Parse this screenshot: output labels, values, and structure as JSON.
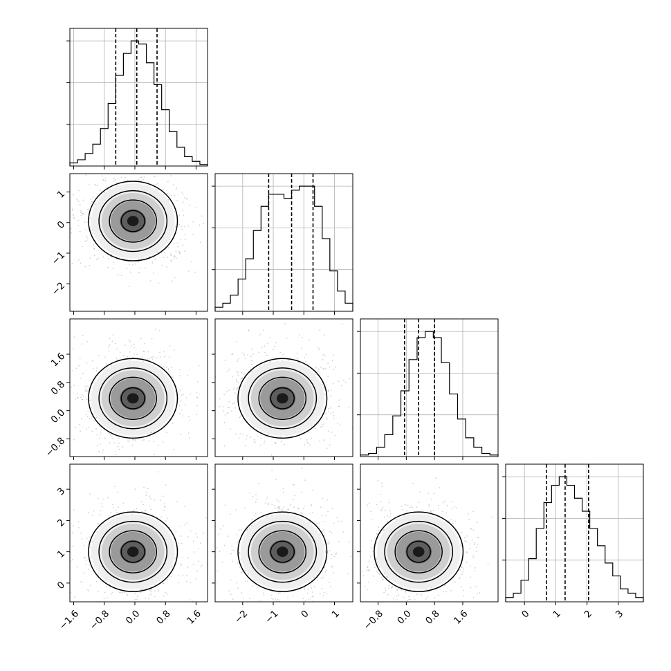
{
  "chart_data": {
    "type": "corner",
    "title": "",
    "grid": true,
    "params": [
      {
        "range": [
          -1.7,
          1.9
        ],
        "ticks": [
          -1.6,
          -0.8,
          0.0,
          0.8,
          1.6
        ],
        "tick_labels": [
          "−1.6",
          "−0.8",
          "0.0",
          "0.8",
          "1.6"
        ],
        "hist_counts": [
          1,
          2,
          4,
          7,
          12,
          20,
          29,
          36,
          40,
          39,
          33,
          26,
          18,
          11,
          6,
          3,
          1.5,
          0.5
        ],
        "quantiles": [
          -0.5,
          0.05,
          0.58
        ],
        "mode": [
          -0.05,
          0.05
        ]
      },
      {
        "range": [
          -2.9,
          1.6
        ],
        "ticks": [
          -2,
          -1,
          0,
          1
        ],
        "tick_labels": [
          "−2",
          "−1",
          "0",
          "1"
        ],
        "hist_counts": [
          1,
          2,
          4,
          8,
          13,
          20,
          26,
          29,
          29,
          28,
          30,
          31,
          31,
          26,
          18,
          10,
          5,
          2
        ],
        "quantiles": [
          -1.15,
          -0.4,
          0.3
        ],
        "mode": [
          -0.7,
          0.05
        ]
      },
      {
        "range": [
          -1.3,
          2.6
        ],
        "ticks": [
          -0.8,
          0.0,
          0.8,
          1.6
        ],
        "tick_labels": [
          "−0.8",
          "0.0",
          "0.8",
          "1.6"
        ],
        "hist_counts": [
          0.5,
          1,
          3,
          7,
          13,
          21,
          31,
          38,
          40,
          38,
          30,
          20,
          12,
          6,
          3,
          1,
          0.5
        ],
        "quantiles": [
          -0.05,
          0.35,
          0.8
        ],
        "mode": [
          0.35,
          0.35
        ]
      },
      {
        "range": [
          -0.6,
          3.8
        ],
        "ticks": [
          0,
          1,
          2,
          3
        ],
        "tick_labels": [
          "0",
          "1",
          "2",
          "3"
        ],
        "hist_counts": [
          1,
          2,
          5,
          10,
          17,
          23,
          27,
          29,
          27,
          24,
          21,
          17,
          13,
          9,
          6,
          3,
          2,
          1
        ],
        "quantiles": [
          0.7,
          1.3,
          2.05
        ],
        "mode": [
          1.1,
          1.0
        ]
      }
    ]
  }
}
